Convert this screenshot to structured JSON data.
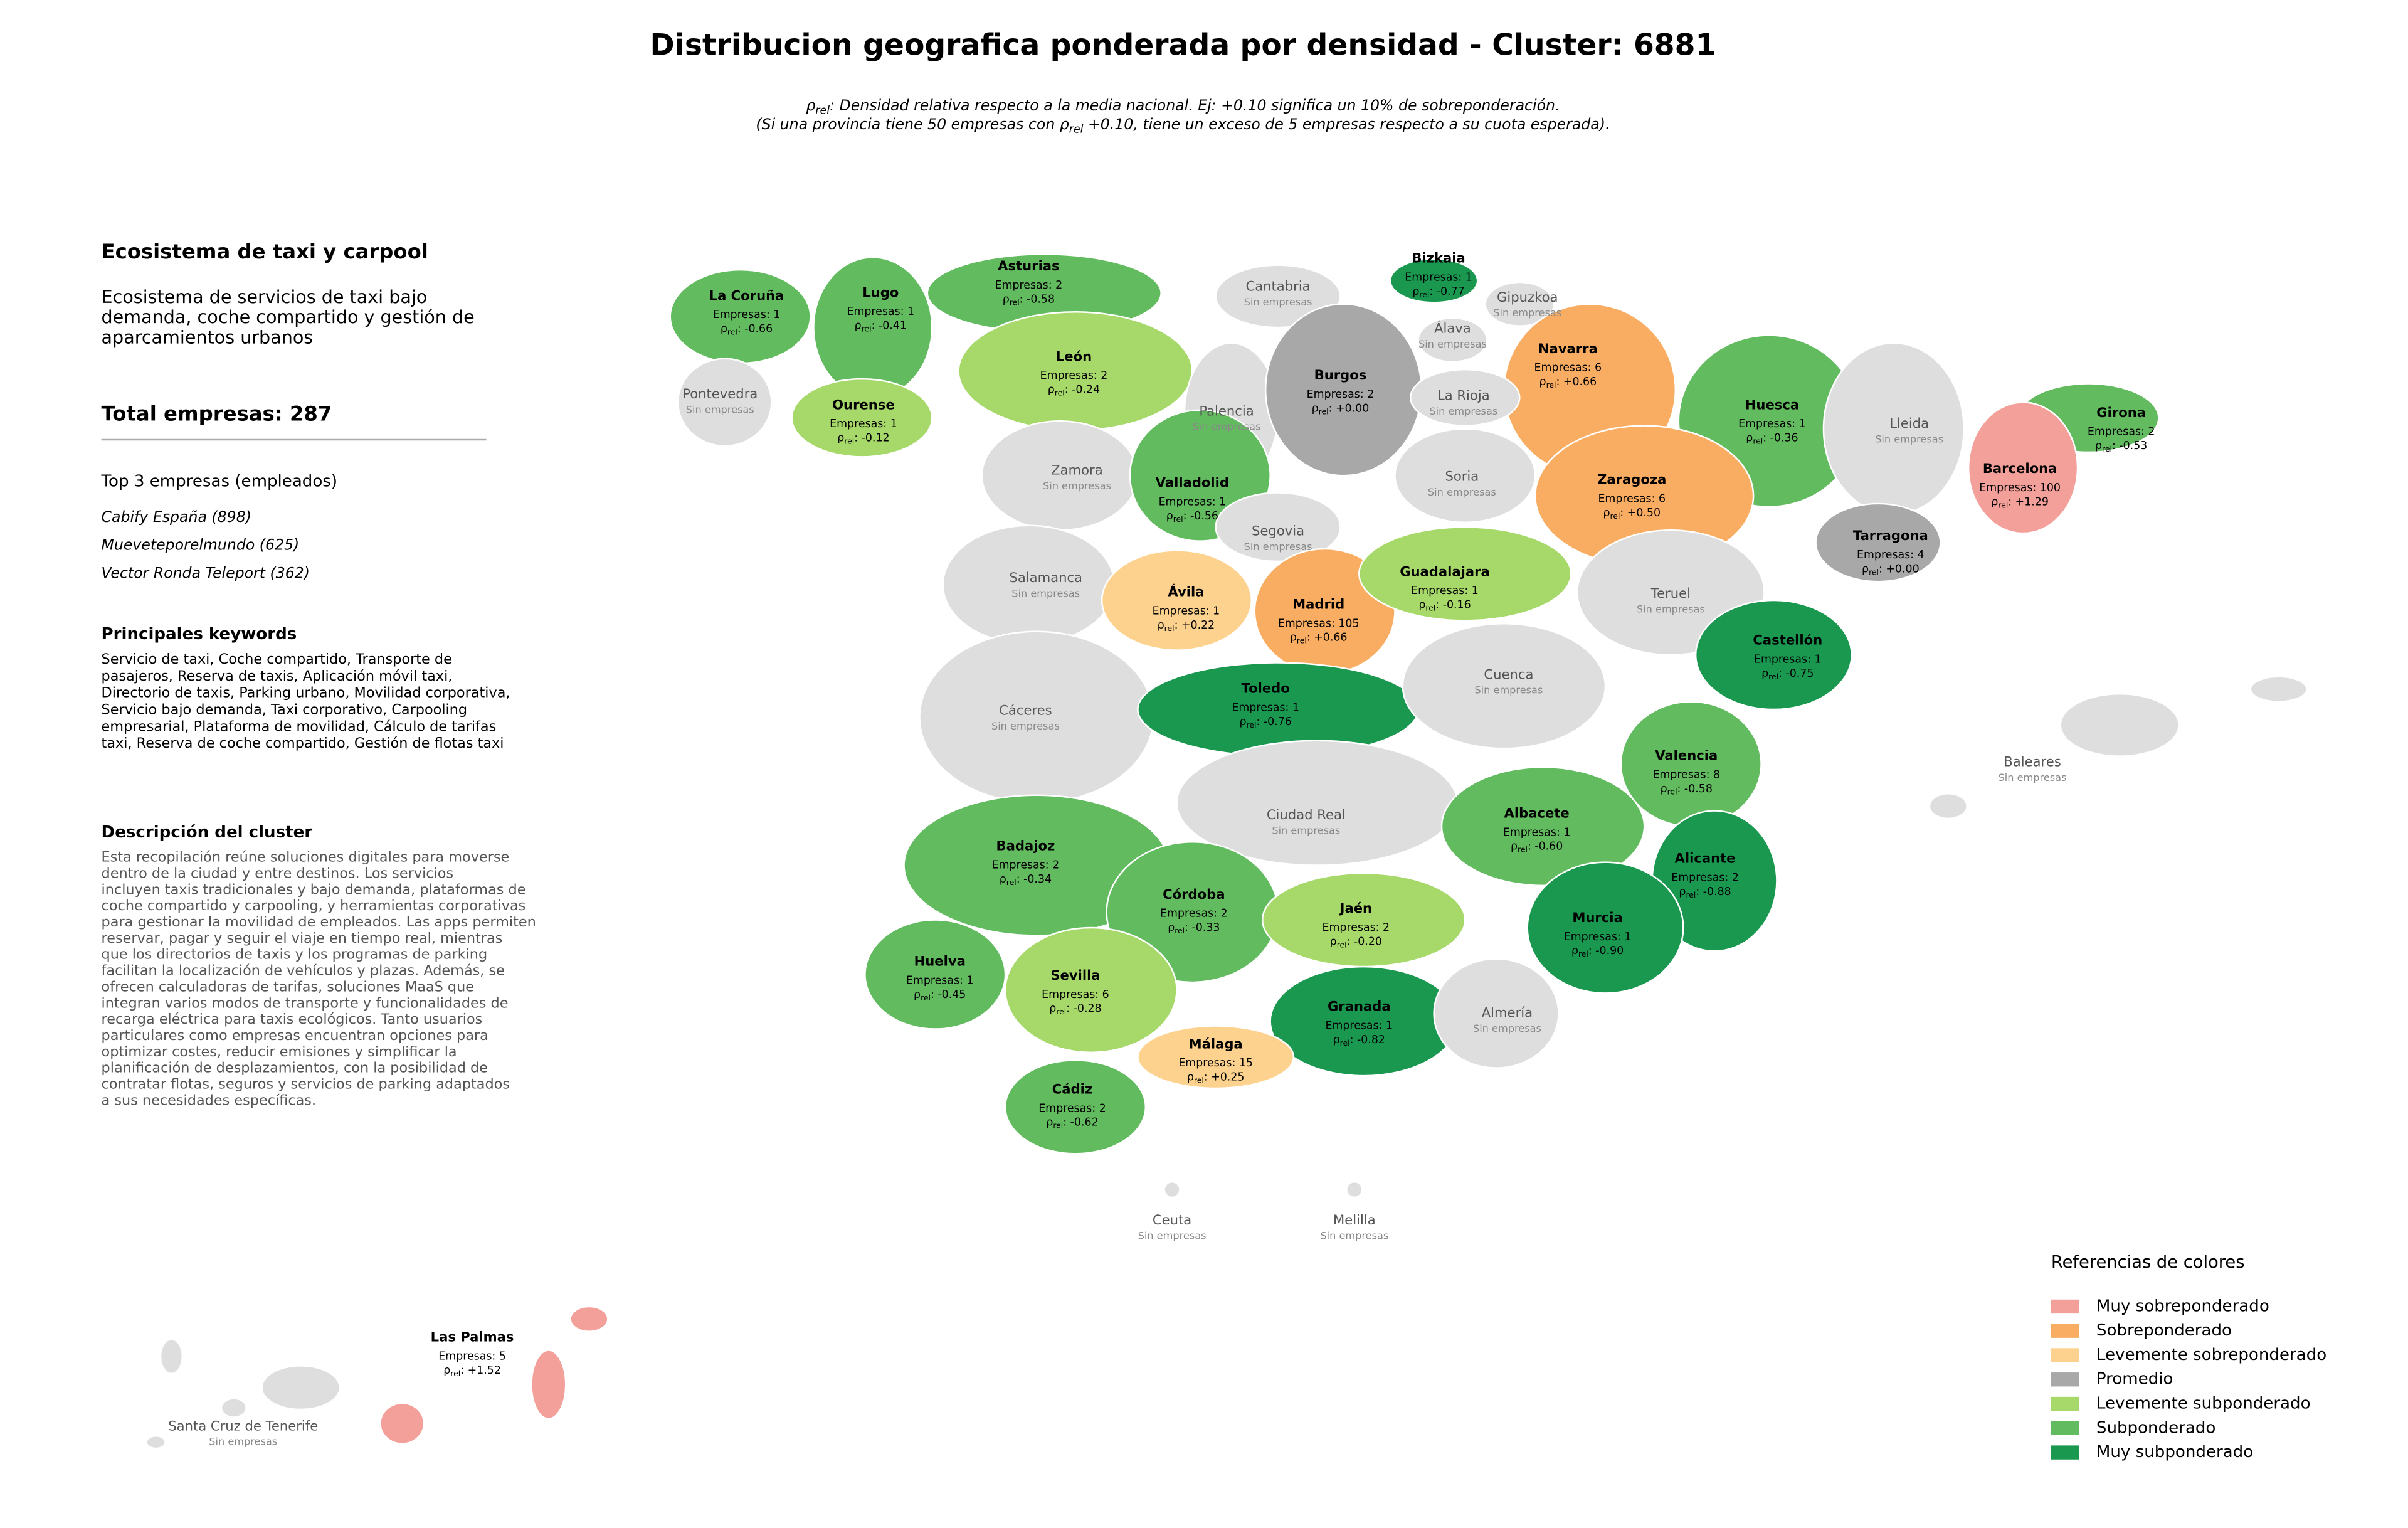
{
  "title": "Distribucion geografica ponderada por densidad - Cluster: 6881",
  "subtitle_lines": [
    [
      "ρ",
      "rel",
      ": Densidad relativa respecto a la media nacional. Ej: +0.10 significa un 10% de sobreponderación."
    ],
    [
      "(Si una provincia tiene 50 empresas con ρ",
      "rel",
      " +0.10, tiene un exceso de 5 empresas respecto a su cuota esperada)."
    ]
  ],
  "sidebar": {
    "heading": "Ecosistema de taxi y carpool",
    "description_lines": [
      "Ecosistema de servicios de taxi bajo",
      "demanda, coche compartido y gestión de",
      "aparcamientos urbanos"
    ],
    "total_label": "Total empresas: ",
    "total": 287,
    "top_heading": "Top 3 empresas (empleados)",
    "top": [
      "Cabify España (898)",
      "Mueveteporelmundo (625)",
      "Vector Ronda Teleport (362)"
    ],
    "keywords_heading": "Principales keywords",
    "keywords_lines": [
      "Servicio de taxi, Coche compartido, Transporte de",
      "pasajeros, Reserva de taxis, Aplicación móvil taxi,",
      "Directorio de taxis, Parking urbano, Movilidad corporativa,",
      "Servicio bajo demanda, Taxi corporativo, Carpooling",
      "empresarial, Plataforma de movilidad, Cálculo de tarifas",
      "taxi, Reserva de coche compartido, Gestión de flotas taxi"
    ],
    "cluster_heading": "Descripción del cluster",
    "cluster_lines": [
      "Esta recopilación reúne soluciones digitales para moverse",
      "dentro de la ciudad y entre destinos. Los servicios",
      "incluyen taxis tradicionales y bajo demanda, plataformas de",
      "coche compartido y carpooling, y herramientas corporativas",
      "para gestionar la movilidad de empleados. Las apps permiten",
      "reservar, pagar y seguir el viaje en tiempo real, mientras",
      "que los directorios de taxis y los programas de parking",
      "facilitan la localización de vehículos y plazas. Además, se",
      "ofrecen calculadoras de tarifas, soluciones MaaS que",
      "integran varios modos de transporte y funcionalidades de",
      "recarga eléctrica para taxis ecológicos. Tanto usuarios",
      "particulares como empresas encuentran opciones para",
      "optimizar costes, reducir emisiones y simplificar la",
      "planificación de desplazamientos, con la posibilidad de",
      "contratar flotas, seguros y servicios de parking adaptados",
      "a sus necesidades específicas."
    ]
  },
  "map": {
    "empresas_label": "Empresas: ",
    "rho_symbol": "ρ",
    "rho_sub": "rel",
    "rho_sep": ": ",
    "empty_color": "#dedede",
    "provinces": [
      {
        "name": "La Coruña",
        "empresas": 1,
        "rho": "-0.66",
        "color": "#62bb5f"
      },
      {
        "name": "Lugo",
        "empresas": 1,
        "rho": "-0.41",
        "color": "#62bb5f"
      },
      {
        "name": "Asturias",
        "empresas": 2,
        "rho": "-0.58",
        "color": "#62bb5f"
      },
      {
        "name": "Cantabria",
        "status": "Sin empresas"
      },
      {
        "name": "Bizkaia",
        "empresas": 1,
        "rho": "-0.77",
        "color": "#1a9850"
      },
      {
        "name": "Gipuzkoa",
        "status": "Sin empresas"
      },
      {
        "name": "Álava",
        "status": "Sin empresas"
      },
      {
        "name": "Navarra",
        "empresas": 6,
        "rho": "+0.66",
        "color": "#f9ad62"
      },
      {
        "name": "Pontevedra",
        "status": "Sin empresas"
      },
      {
        "name": "Ourense",
        "empresas": 1,
        "rho": "-0.12",
        "color": "#a7d96a"
      },
      {
        "name": "León",
        "empresas": 2,
        "rho": "-0.24",
        "color": "#a7d96a"
      },
      {
        "name": "Palencia",
        "status": "Sin empresas"
      },
      {
        "name": "Burgos",
        "empresas": 2,
        "rho": "+0.00",
        "color": "#a8a8a8"
      },
      {
        "name": "La Rioja",
        "status": "Sin empresas"
      },
      {
        "name": "Huesca",
        "empresas": 1,
        "rho": "-0.36",
        "color": "#62bb5f"
      },
      {
        "name": "Lleida",
        "status": "Sin empresas"
      },
      {
        "name": "Girona",
        "empresas": 2,
        "rho": "-0.53",
        "color": "#62bb5f"
      },
      {
        "name": "Barcelona",
        "empresas": 100,
        "rho": "+1.29",
        "color": "#f4a09a"
      },
      {
        "name": "Zamora",
        "status": "Sin empresas"
      },
      {
        "name": "Valladolid",
        "empresas": 1,
        "rho": "-0.56",
        "color": "#62bb5f"
      },
      {
        "name": "Soria",
        "status": "Sin empresas"
      },
      {
        "name": "Zaragoza",
        "empresas": 6,
        "rho": "+0.50",
        "color": "#f9ad62"
      },
      {
        "name": "Tarragona",
        "empresas": 4,
        "rho": "+0.00",
        "color": "#a8a8a8"
      },
      {
        "name": "Salamanca",
        "status": "Sin empresas"
      },
      {
        "name": "Segovia",
        "status": "Sin empresas"
      },
      {
        "name": "Ávila",
        "empresas": 1,
        "rho": "+0.22",
        "color": "#fdd28f"
      },
      {
        "name": "Madrid",
        "empresas": 105,
        "rho": "+0.66",
        "color": "#f9ad62"
      },
      {
        "name": "Guadalajara",
        "empresas": 1,
        "rho": "-0.16",
        "color": "#a7d96a"
      },
      {
        "name": "Teruel",
        "status": "Sin empresas"
      },
      {
        "name": "Castellón",
        "empresas": 1,
        "rho": "-0.75",
        "color": "#1a9850"
      },
      {
        "name": "Cáceres",
        "status": "Sin empresas"
      },
      {
        "name": "Toledo",
        "empresas": 1,
        "rho": "-0.76",
        "color": "#1a9850"
      },
      {
        "name": "Cuenca",
        "status": "Sin empresas"
      },
      {
        "name": "Baleares",
        "status": "Sin empresas"
      },
      {
        "name": "Valencia",
        "empresas": 8,
        "rho": "-0.58",
        "color": "#62bb5f"
      },
      {
        "name": "Ciudad Real",
        "status": "Sin empresas"
      },
      {
        "name": "Badajoz",
        "empresas": 2,
        "rho": "-0.34",
        "color": "#62bb5f"
      },
      {
        "name": "Albacete",
        "empresas": 1,
        "rho": "-0.60",
        "color": "#62bb5f"
      },
      {
        "name": "Alicante",
        "empresas": 2,
        "rho": "-0.88",
        "color": "#1a9850"
      },
      {
        "name": "Córdoba",
        "empresas": 2,
        "rho": "-0.33",
        "color": "#62bb5f"
      },
      {
        "name": "Jaén",
        "empresas": 2,
        "rho": "-0.20",
        "color": "#a7d96a"
      },
      {
        "name": "Murcia",
        "empresas": 1,
        "rho": "-0.90",
        "color": "#1a9850"
      },
      {
        "name": "Huelva",
        "empresas": 1,
        "rho": "-0.45",
        "color": "#62bb5f"
      },
      {
        "name": "Sevilla",
        "empresas": 6,
        "rho": "-0.28",
        "color": "#a7d96a"
      },
      {
        "name": "Granada",
        "empresas": 1,
        "rho": "-0.82",
        "color": "#1a9850"
      },
      {
        "name": "Almería",
        "status": "Sin empresas"
      },
      {
        "name": "Málaga",
        "empresas": 15,
        "rho": "+0.25",
        "color": "#fdd28f"
      },
      {
        "name": "Cádiz",
        "empresas": 2,
        "rho": "-0.62",
        "color": "#62bb5f"
      },
      {
        "name": "Ceuta",
        "status": "Sin empresas"
      },
      {
        "name": "Melilla",
        "status": "Sin empresas"
      },
      {
        "name": "Las Palmas",
        "empresas": 5,
        "rho": "+1.52",
        "color": "#f4a09a"
      },
      {
        "name": "Santa Cruz de Tenerife",
        "status": "Sin empresas"
      }
    ]
  },
  "legend": {
    "title": "Referencias de colores",
    "items": [
      {
        "label": "Muy sobreponderado",
        "color": "#f4a09a"
      },
      {
        "label": "Sobreponderado",
        "color": "#f9ad62"
      },
      {
        "label": "Levemente sobreponderado",
        "color": "#fdd28f"
      },
      {
        "label": "Promedio",
        "color": "#a8a8a8"
      },
      {
        "label": "Levemente subponderado",
        "color": "#a7d96a"
      },
      {
        "label": "Subponderado",
        "color": "#62bb5f"
      },
      {
        "label": "Muy subponderado",
        "color": "#1a9850"
      }
    ]
  }
}
